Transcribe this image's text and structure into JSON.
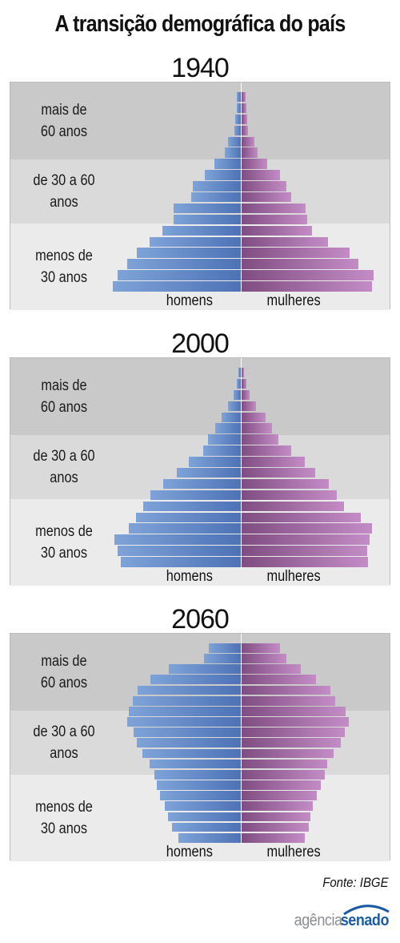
{
  "title": "A transição demográfica do país",
  "source": "Fonte: IBGE",
  "logo": {
    "word1": "agência",
    "word2": "senado"
  },
  "colors": {
    "male": "#5a7fc0",
    "female": "#a46aa8",
    "band_top": "#c9c9c9",
    "band_mid": "#dadada",
    "band_bottom": "#ebebeb"
  },
  "chart_data": [
    {
      "type": "population-pyramid",
      "title": "1940",
      "bands": [
        "mais de 60 anos",
        "de 30 a 60 anos",
        "menos de 30 anos"
      ],
      "legend": [
        "homens",
        "mulheres"
      ],
      "age_groups_from_top": 18,
      "series": [
        {
          "name": "homens",
          "values": [
            5,
            5,
            7,
            8,
            16,
            20,
            33,
            45,
            60,
            62,
            84,
            84,
            98,
            114,
            130,
            142,
            154,
            160
          ]
        },
        {
          "name": "mulheres",
          "values": [
            5,
            6,
            7,
            8,
            16,
            20,
            32,
            48,
            56,
            62,
            80,
            82,
            88,
            108,
            135,
            146,
            165,
            163
          ]
        }
      ]
    },
    {
      "type": "population-pyramid",
      "title": "2000",
      "bands": [
        "mais de 60 anos",
        "de 30 a 60 anos",
        "menos de 30 anos"
      ],
      "legend": [
        "homens",
        "mulheres"
      ],
      "age_groups_from_top": 18,
      "series": [
        {
          "name": "homens",
          "values": [
            3,
            5,
            9,
            16,
            24,
            32,
            41,
            47,
            65,
            80,
            97,
            113,
            122,
            131,
            140,
            158,
            154,
            150
          ]
        },
        {
          "name": "mulheres",
          "values": [
            3,
            6,
            10,
            18,
            30,
            38,
            46,
            62,
            79,
            92,
            109,
            119,
            128,
            149,
            163,
            160,
            157,
            158
          ]
        }
      ]
    },
    {
      "type": "population-pyramid",
      "title": "2060",
      "bands": [
        "mais de 60 anos",
        "de 30 a 60 anos",
        "menos de 30 anos"
      ],
      "legend": [
        "homens",
        "mulheres"
      ],
      "age_groups_from_top": 19,
      "series": [
        {
          "name": "homens",
          "values": [
            40,
            46,
            90,
            113,
            129,
            135,
            140,
            142,
            134,
            130,
            123,
            114,
            108,
            105,
            101,
            95,
            91,
            86,
            78
          ]
        },
        {
          "name": "mulheres",
          "values": [
            48,
            56,
            74,
            93,
            111,
            117,
            130,
            134,
            129,
            124,
            115,
            107,
            104,
            99,
            94,
            89,
            86,
            84,
            79
          ]
        }
      ]
    }
  ]
}
